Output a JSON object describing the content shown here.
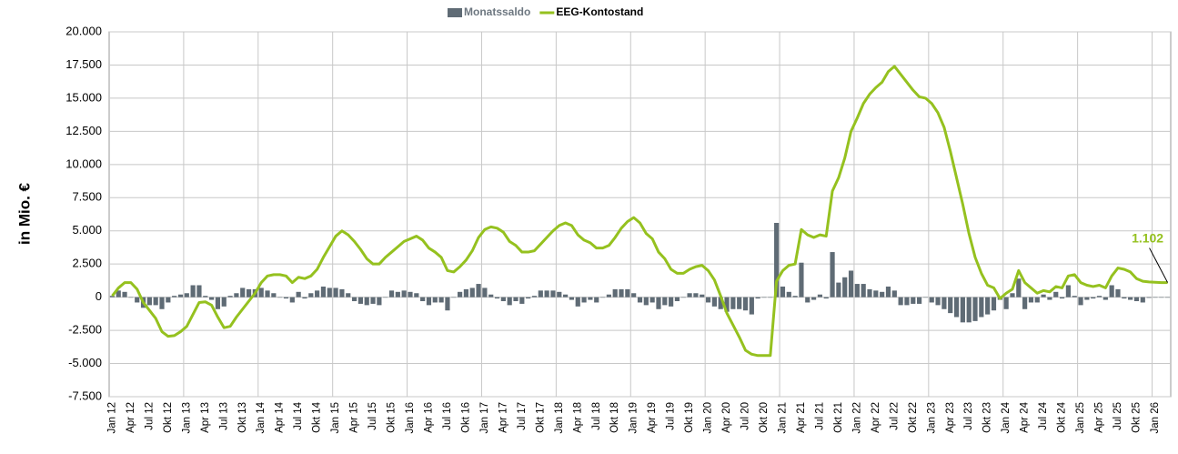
{
  "chart_data": {
    "type": "bar_line",
    "y_label": "in Mio. €",
    "categories": [
      "Jan 12",
      null,
      null,
      "Apr 12",
      null,
      null,
      "Jul 12",
      null,
      null,
      "Okt 12",
      null,
      null,
      "Jan 13",
      null,
      null,
      "Apr 13",
      null,
      null,
      "Jul 13",
      null,
      null,
      "Okt 13",
      null,
      null,
      "Jan 14",
      null,
      null,
      "Apr 14",
      null,
      null,
      "Jul 14",
      null,
      null,
      "Okt 14",
      null,
      null,
      "Jan 15",
      null,
      null,
      "Apr 15",
      null,
      null,
      "Jul 15",
      null,
      null,
      "Okt 15",
      null,
      null,
      "Jan 16",
      null,
      null,
      "Apr 16",
      null,
      null,
      "Jul 16",
      null,
      null,
      "Okt 16",
      null,
      null,
      "Jan 17",
      null,
      null,
      "Apr 17",
      null,
      null,
      "Jul 17",
      null,
      null,
      "Okt 17",
      null,
      null,
      "Jan 18",
      null,
      null,
      "Apr 18",
      null,
      null,
      "Jul 18",
      null,
      null,
      "Okt 18",
      null,
      null,
      "Jan 19",
      null,
      null,
      "Apr 19",
      null,
      null,
      "Jul 19",
      null,
      null,
      "Okt 19",
      null,
      null,
      "Jan 20",
      null,
      null,
      "Apr 20",
      null,
      null,
      "Jul 20",
      null,
      null,
      "Okt 20",
      null,
      null,
      "Jan 21",
      null,
      null,
      "Apr 21",
      null,
      null,
      "Jul 21",
      null,
      null,
      "Okt 21",
      null,
      null,
      "Jan 22",
      null,
      null,
      "Apr 22",
      null,
      null,
      "Jul 22",
      null,
      null,
      "Okt 22",
      null,
      null,
      "Jan 23",
      null,
      null,
      "Apr 23",
      null,
      null,
      "Jul 23",
      null,
      null,
      "Okt 23",
      null,
      null,
      "Jan 24",
      null,
      null,
      "Apr 24",
      null,
      null,
      "Jul 24",
      null,
      null,
      "Okt 24",
      null,
      null,
      "Jan 25",
      null,
      null,
      "Apr 25",
      null,
      null,
      "Jul 25",
      null,
      null,
      "Okt 25",
      null,
      null,
      "Jan 26",
      null,
      null
    ],
    "series": [
      {
        "name": "Monatssaldo",
        "type": "bar",
        "color": "#5f6b75",
        "values": [
          100,
          500,
          400,
          0,
          -400,
          -800,
          -600,
          -600,
          -900,
          -400,
          100,
          200,
          300,
          900,
          900,
          100,
          -200,
          -900,
          -700,
          100,
          300,
          700,
          600,
          600,
          700,
          500,
          300,
          0,
          -100,
          -400,
          400,
          -100,
          300,
          500,
          800,
          700,
          700,
          600,
          300,
          -300,
          -500,
          -600,
          -500,
          -600,
          0,
          500,
          400,
          500,
          400,
          300,
          -300,
          -600,
          -400,
          -400,
          -1000,
          0,
          400,
          600,
          700,
          1000,
          700,
          200,
          -100,
          -300,
          -600,
          -300,
          -500,
          -100,
          100,
          500,
          500,
          500,
          400,
          200,
          -200,
          -700,
          -400,
          -200,
          -400,
          0,
          200,
          600,
          600,
          600,
          300,
          -400,
          -600,
          -400,
          -900,
          -600,
          -700,
          -300,
          0,
          300,
          300,
          200,
          -400,
          -700,
          -900,
          -1100,
          -900,
          -900,
          -1000,
          -1300,
          -100,
          0,
          0,
          5600,
          800,
          400,
          100,
          2600,
          -400,
          -200,
          200,
          -100,
          3400,
          1100,
          1500,
          2000,
          1000,
          1000,
          600,
          500,
          400,
          800,
          500,
          -600,
          -600,
          -500,
          -500,
          0,
          -400,
          -600,
          -900,
          -1200,
          -1500,
          -1900,
          -1900,
          -1800,
          -1500,
          -1300,
          -1000,
          -200,
          -900,
          300,
          1400,
          -900,
          -400,
          -400,
          200,
          -200,
          400,
          -100,
          900,
          100,
          -600,
          -200,
          -100,
          100,
          -200,
          900,
          600,
          -100,
          -200,
          -300,
          -400,
          -50,
          -20,
          -20,
          0
        ]
      },
      {
        "name": "EEG-Kontostand",
        "type": "line",
        "color": "#95c11f",
        "values": [
          100,
          700,
          1100,
          1100,
          600,
          -400,
          -1000,
          -1600,
          -2600,
          -2950,
          -2900,
          -2600,
          -2200,
          -1300,
          -400,
          -350,
          -600,
          -1500,
          -2300,
          -2200,
          -1500,
          -900,
          -300,
          300,
          1100,
          1600,
          1700,
          1700,
          1600,
          1100,
          1500,
          1400,
          1600,
          2100,
          3000,
          3800,
          4600,
          5000,
          4700,
          4200,
          3600,
          2900,
          2500,
          2500,
          3000,
          3400,
          3800,
          4200,
          4400,
          4600,
          4300,
          3700,
          3400,
          3000,
          2000,
          1900,
          2300,
          2800,
          3500,
          4500,
          5100,
          5300,
          5200,
          4900,
          4200,
          3900,
          3400,
          3400,
          3500,
          4000,
          4500,
          5000,
          5400,
          5600,
          5400,
          4700,
          4300,
          4100,
          3700,
          3700,
          3900,
          4500,
          5200,
          5700,
          6000,
          5600,
          4800,
          4400,
          3400,
          2900,
          2100,
          1800,
          1800,
          2100,
          2300,
          2400,
          2000,
          1300,
          100,
          -1200,
          -2100,
          -3000,
          -4000,
          -4300,
          -4400,
          -4400,
          -4400,
          1200,
          2000,
          2400,
          2500,
          5100,
          4700,
          4500,
          4700,
          4600,
          8000,
          9000,
          10500,
          12500,
          13500,
          14600,
          15300,
          15800,
          16200,
          17000,
          17400,
          16800,
          16200,
          15600,
          15100,
          15000,
          14600,
          13900,
          12800,
          11000,
          9000,
          7000,
          4800,
          3000,
          1800,
          900,
          700,
          -100,
          300,
          600,
          2000,
          1100,
          700,
          300,
          500,
          400,
          800,
          700,
          1600,
          1700,
          1100,
          900,
          800,
          900,
          700,
          1600,
          2200,
          2100,
          1900,
          1400,
          1200,
          1150,
          1120,
          1100,
          1102
        ],
        "value_labels": [
          null,
          null,
          null,
          null,
          null,
          null,
          null,
          null,
          null,
          null,
          null,
          null,
          null,
          null,
          null,
          null,
          null,
          null,
          null,
          null,
          null,
          null,
          null,
          null,
          null,
          null,
          null,
          null,
          null,
          null,
          null,
          null,
          null,
          null,
          null,
          null,
          null,
          null,
          null,
          null,
          null,
          null,
          null,
          null,
          null,
          null,
          null,
          null,
          null,
          null,
          null,
          null,
          null,
          null,
          null,
          null,
          null,
          null,
          null,
          null,
          null,
          null,
          null,
          null,
          null,
          null,
          null,
          null,
          null,
          null,
          null,
          null,
          null,
          null,
          null,
          null,
          null,
          null,
          null,
          null,
          null,
          null,
          null,
          null,
          null,
          null,
          null,
          null,
          null,
          null,
          null,
          null,
          null,
          null,
          null,
          null,
          null,
          null,
          null,
          null,
          null,
          null,
          null,
          null,
          null,
          null,
          null,
          null,
          null,
          null,
          null,
          null,
          null,
          null,
          null,
          null,
          null,
          null,
          null,
          null,
          null,
          null,
          null,
          null,
          null,
          null,
          null,
          null,
          null,
          null,
          null,
          null,
          null,
          null,
          null,
          null,
          null,
          null,
          null,
          null,
          null,
          null,
          null,
          null,
          null,
          null,
          null,
          null,
          null,
          null,
          null,
          null,
          null,
          null,
          null,
          null,
          null,
          null,
          null,
          null,
          null,
          null,
          null,
          null,
          null,
          null,
          null,
          null,
          null,
          null,
          "1.102"
        ]
      }
    ],
    "ylim": [
      -7500,
      20000
    ],
    "yticks": [
      {
        "value": -7500,
        "label": "-7.500"
      },
      {
        "value": -5000,
        "label": "-5.000"
      },
      {
        "value": -2500,
        "label": "-2.500"
      },
      0,
      {
        "value": 2500,
        "label": "2.500"
      },
      {
        "value": 5000,
        "label": "5.000"
      },
      {
        "value": 7500,
        "label": "7.500"
      },
      {
        "value": 10000,
        "label": "10.000"
      },
      {
        "value": 12500,
        "label": "12.500"
      },
      {
        "value": 15000,
        "label": "15.000"
      },
      {
        "value": 17500,
        "label": "17.500"
      },
      {
        "value": 20000,
        "label": "20.000"
      }
    ],
    "grid": true,
    "legend": "top"
  }
}
